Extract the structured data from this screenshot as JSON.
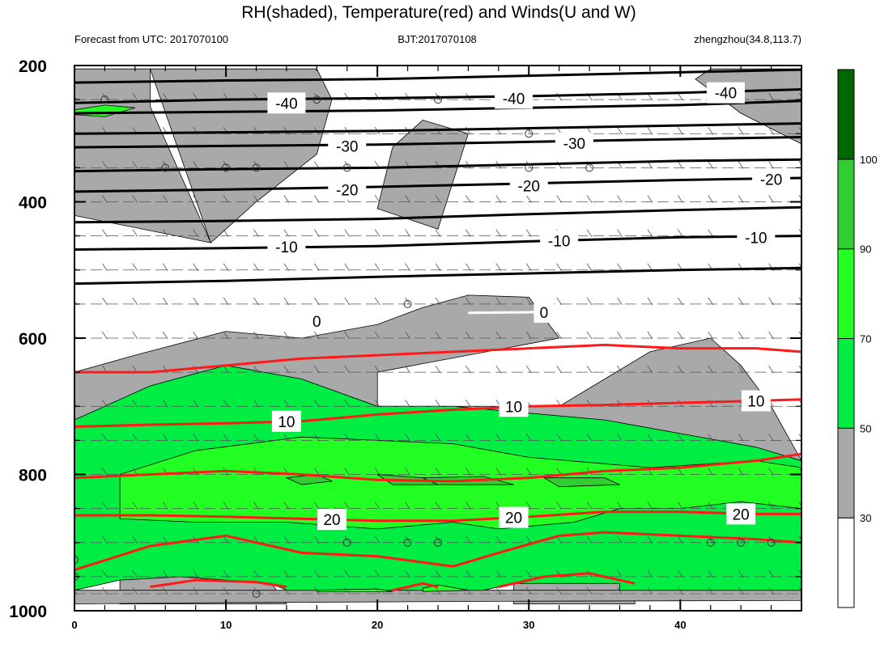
{
  "chart_data": {
    "type": "heatmap",
    "title": "RH(shaded), Temperature(red) and Winds(U and W)",
    "subtitle_left": "Forecast from UTC: 2017070100",
    "subtitle_center": "BJT:2017070108",
    "subtitle_right": "zhengzhou(34.8,113.7)",
    "x_ticks": [
      "0",
      "10",
      "20",
      "30",
      "40"
    ],
    "y_ticks": [
      "200",
      "400",
      "600",
      "800",
      "1000"
    ],
    "xlim": [
      0,
      48
    ],
    "ylim": [
      1000,
      200
    ],
    "colorbar": {
      "ticks": [
        "30",
        "50",
        "70",
        "90",
        "100"
      ],
      "levels": [
        30,
        50,
        70,
        90,
        100
      ],
      "colors": [
        "#ffffff",
        "#a9a9a9",
        "#00ee44",
        "#22ff22",
        "#33cc33",
        "#006600"
      ]
    },
    "rh_regions": [
      {
        "level": "gray",
        "points": [
          [
            0,
            205
          ],
          [
            5,
            205
          ],
          [
            5,
            260
          ],
          [
            9,
            460
          ],
          [
            0,
            420
          ]
        ]
      },
      {
        "level": "gray",
        "points": [
          [
            5,
            205
          ],
          [
            16,
            205
          ],
          [
            17,
            250
          ],
          [
            16,
            330
          ],
          [
            12,
            400
          ],
          [
            9,
            460
          ]
        ]
      },
      {
        "level": "gray",
        "points": [
          [
            21,
            320
          ],
          [
            23,
            280
          ],
          [
            26,
            300
          ],
          [
            24,
            440
          ],
          [
            20,
            410
          ]
        ]
      },
      {
        "level": "gray",
        "points": [
          [
            42,
            205
          ],
          [
            48,
            205
          ],
          [
            48,
            315
          ],
          [
            44,
            270
          ],
          [
            41,
            220
          ]
        ]
      },
      {
        "level": "gray",
        "points": [
          [
            0,
            650
          ],
          [
            4,
            625
          ],
          [
            10,
            590
          ],
          [
            15,
            600
          ],
          [
            20,
            580
          ],
          [
            23,
            555
          ],
          [
            26,
            537
          ],
          [
            30,
            540
          ],
          [
            32,
            600
          ],
          [
            20,
            650
          ],
          [
            20,
            700
          ],
          [
            32,
            700
          ],
          [
            38,
            620
          ],
          [
            42,
            600
          ],
          [
            44,
            640
          ],
          [
            46,
            700
          ],
          [
            48,
            780
          ],
          [
            42,
            760
          ],
          [
            36,
            750
          ],
          [
            25,
            740
          ],
          [
            15,
            740
          ],
          [
            10,
            730
          ],
          [
            0,
            720
          ]
        ]
      },
      {
        "level": "gray",
        "points": [
          [
            3,
            955
          ],
          [
            7,
            950
          ],
          [
            13,
            960
          ],
          [
            14,
            990
          ],
          [
            3,
            990
          ]
        ]
      },
      {
        "level": "gray",
        "points": [
          [
            29,
            955
          ],
          [
            33,
            943
          ],
          [
            37,
            960
          ],
          [
            37,
            990
          ],
          [
            29,
            990
          ]
        ]
      },
      {
        "level": "gray",
        "points": [
          [
            0,
            970
          ],
          [
            48,
            970
          ],
          [
            48,
            985
          ],
          [
            30,
            986
          ],
          [
            10,
            988
          ],
          [
            0,
            990
          ]
        ]
      },
      {
        "level": "green50",
        "points": [
          [
            0,
            720
          ],
          [
            5,
            670
          ],
          [
            10,
            640
          ],
          [
            15,
            660
          ],
          [
            20,
            700
          ],
          [
            25,
            700
          ],
          [
            35,
            720
          ],
          [
            45,
            760
          ],
          [
            48,
            780
          ],
          [
            48,
            970
          ],
          [
            36,
            970
          ],
          [
            36,
            960
          ],
          [
            29,
            960
          ],
          [
            27,
            970
          ],
          [
            14,
            970
          ],
          [
            13,
            960
          ],
          [
            7,
            950
          ],
          [
            3,
            955
          ],
          [
            0,
            970
          ]
        ]
      },
      {
        "level": "green70",
        "points": [
          [
            3,
            800
          ],
          [
            8,
            765
          ],
          [
            15,
            745
          ],
          [
            25,
            755
          ],
          [
            30,
            775
          ],
          [
            38,
            790
          ],
          [
            45,
            780
          ],
          [
            48,
            790
          ],
          [
            48,
            850
          ],
          [
            44,
            840
          ],
          [
            40,
            850
          ],
          [
            36,
            850
          ],
          [
            33,
            870
          ],
          [
            28,
            880
          ],
          [
            25,
            870
          ],
          [
            20,
            880
          ],
          [
            14,
            870
          ],
          [
            8,
            870
          ],
          [
            3,
            865
          ]
        ]
      },
      {
        "level": "green90",
        "points": [
          [
            14,
            805
          ],
          [
            16,
            800
          ],
          [
            17,
            810
          ],
          [
            15,
            815
          ]
        ]
      },
      {
        "level": "green90",
        "points": [
          [
            20,
            800
          ],
          [
            23,
            805
          ],
          [
            24,
            815
          ],
          [
            21,
            815
          ]
        ]
      },
      {
        "level": "green90",
        "points": [
          [
            23,
            805
          ],
          [
            27,
            803
          ],
          [
            29,
            815
          ],
          [
            24,
            815
          ]
        ]
      },
      {
        "level": "green90",
        "points": [
          [
            31,
            805
          ],
          [
            35,
            805
          ],
          [
            36,
            815
          ],
          [
            32,
            818
          ]
        ]
      },
      {
        "level": "green70",
        "points": [
          [
            16,
            970
          ],
          [
            20,
            968
          ],
          [
            21,
            972
          ],
          [
            16,
            972
          ]
        ]
      },
      {
        "level": "green70",
        "points": [
          [
            23,
            967
          ],
          [
            24,
            962
          ],
          [
            26,
            970
          ],
          [
            23,
            972
          ]
        ]
      },
      {
        "level": "green70",
        "points": [
          [
            0,
            265
          ],
          [
            2,
            258
          ],
          [
            4,
            262
          ],
          [
            2,
            275
          ],
          [
            0,
            272
          ]
        ]
      }
    ],
    "temperature_isotherms_black": [
      {
        "label": "-40",
        "points": [
          [
            0,
            225
          ],
          [
            10,
            222
          ],
          [
            20,
            220
          ],
          [
            30,
            215
          ],
          [
            40,
            210
          ],
          [
            48,
            206
          ]
        ]
      },
      {
        "label": "-40",
        "points": [
          [
            0,
            255
          ],
          [
            10,
            250
          ],
          [
            20,
            248
          ],
          [
            30,
            245
          ],
          [
            40,
            240
          ],
          [
            48,
            235
          ]
        ]
      },
      {
        "label": "",
        "points": [
          [
            0,
            270
          ],
          [
            10,
            268
          ],
          [
            20,
            266
          ],
          [
            30,
            262
          ],
          [
            40,
            258
          ],
          [
            48,
            252
          ]
        ]
      },
      {
        "label": "-30",
        "points": [
          [
            0,
            300
          ],
          [
            10,
            298
          ],
          [
            20,
            296
          ],
          [
            30,
            292
          ],
          [
            40,
            288
          ],
          [
            48,
            285
          ]
        ]
      },
      {
        "label": "-30",
        "points": [
          [
            0,
            320
          ],
          [
            10,
            318
          ],
          [
            20,
            316
          ],
          [
            30,
            312
          ],
          [
            40,
            308
          ],
          [
            48,
            305
          ]
        ]
      },
      {
        "label": "-20",
        "points": [
          [
            0,
            355
          ],
          [
            10,
            352
          ],
          [
            20,
            350
          ],
          [
            30,
            345
          ],
          [
            40,
            340
          ],
          [
            48,
            338
          ]
        ]
      },
      {
        "label": "-20",
        "points": [
          [
            0,
            385
          ],
          [
            10,
            382
          ],
          [
            20,
            378
          ],
          [
            30,
            373
          ],
          [
            40,
            368
          ],
          [
            48,
            365
          ]
        ]
      },
      {
        "label": "-10",
        "points": [
          [
            0,
            430
          ],
          [
            10,
            428
          ],
          [
            20,
            425
          ],
          [
            30,
            418
          ],
          [
            40,
            412
          ],
          [
            48,
            408
          ]
        ]
      },
      {
        "label": "-10",
        "points": [
          [
            0,
            470
          ],
          [
            10,
            468
          ],
          [
            20,
            465
          ],
          [
            30,
            458
          ],
          [
            40,
            452
          ],
          [
            48,
            450
          ]
        ]
      },
      {
        "label": "",
        "points": [
          [
            0,
            520
          ],
          [
            10,
            516
          ],
          [
            20,
            510
          ],
          [
            30,
            505
          ],
          [
            40,
            500
          ],
          [
            48,
            497
          ]
        ]
      }
    ],
    "zero_isotherm_white": {
      "label": "0",
      "points": [
        [
          26,
          563
        ],
        [
          30,
          562
        ],
        [
          34,
          560
        ]
      ]
    },
    "temperature_isotherms_red": [
      {
        "label": "",
        "points": [
          [
            0,
            650
          ],
          [
            5,
            650
          ],
          [
            10,
            640
          ],
          [
            15,
            630
          ],
          [
            20,
            625
          ],
          [
            25,
            620
          ],
          [
            30,
            615
          ],
          [
            35,
            610
          ],
          [
            40,
            615
          ],
          [
            45,
            615
          ],
          [
            48,
            620
          ]
        ]
      },
      {
        "label": "10",
        "points": [
          [
            0,
            730
          ],
          [
            5,
            727
          ],
          [
            10,
            725
          ],
          [
            15,
            722
          ],
          [
            20,
            712
          ],
          [
            25,
            705
          ],
          [
            30,
            700
          ],
          [
            35,
            698
          ],
          [
            40,
            695
          ],
          [
            45,
            692
          ],
          [
            48,
            690
          ]
        ]
      },
      {
        "label": "",
        "points": [
          [
            0,
            805
          ],
          [
            5,
            800
          ],
          [
            10,
            795
          ],
          [
            15,
            800
          ],
          [
            20,
            808
          ],
          [
            25,
            810
          ],
          [
            30,
            805
          ],
          [
            35,
            795
          ],
          [
            40,
            790
          ],
          [
            45,
            780
          ],
          [
            48,
            770
          ]
        ]
      },
      {
        "label": "20",
        "points": [
          [
            0,
            860
          ],
          [
            5,
            860
          ],
          [
            10,
            862
          ],
          [
            15,
            865
          ],
          [
            20,
            868
          ],
          [
            25,
            868
          ],
          [
            30,
            862
          ],
          [
            35,
            855
          ],
          [
            40,
            855
          ],
          [
            45,
            858
          ],
          [
            48,
            858
          ]
        ]
      },
      {
        "label": "",
        "points": [
          [
            0,
            940
          ],
          [
            5,
            905
          ],
          [
            10,
            890
          ],
          [
            15,
            915
          ],
          [
            20,
            920
          ],
          [
            25,
            935
          ],
          [
            28,
            915
          ],
          [
            32,
            890
          ],
          [
            35,
            885
          ],
          [
            40,
            890
          ],
          [
            45,
            895
          ],
          [
            48,
            900
          ]
        ]
      },
      {
        "label": "",
        "points": [
          [
            5,
            965
          ],
          [
            8,
            955
          ],
          [
            12,
            958
          ],
          [
            14,
            965
          ]
        ]
      },
      {
        "label": "",
        "points": [
          [
            21,
            970
          ],
          [
            23,
            960
          ],
          [
            24,
            965
          ]
        ]
      },
      {
        "label": "",
        "points": [
          [
            28,
            965
          ],
          [
            31,
            950
          ],
          [
            34,
            945
          ],
          [
            37,
            960
          ]
        ]
      }
    ],
    "calm_markers": [
      [
        2,
        250
      ],
      [
        6,
        350
      ],
      [
        10,
        350
      ],
      [
        12,
        350
      ],
      [
        18,
        350
      ],
      [
        16,
        250
      ],
      [
        24,
        250
      ],
      [
        30,
        300
      ],
      [
        30,
        350
      ],
      [
        34,
        350
      ],
      [
        22,
        550
      ],
      [
        18,
        900
      ],
      [
        22,
        900
      ],
      [
        24,
        900
      ],
      [
        42,
        900
      ],
      [
        44,
        900
      ],
      [
        46,
        900
      ],
      [
        0,
        925
      ],
      [
        0,
        950
      ],
      [
        12,
        975
      ]
    ],
    "barb_levels": [
      200,
      250,
      300,
      350,
      400,
      450,
      500,
      550,
      600,
      650,
      700,
      750,
      800,
      850,
      900,
      950,
      975
    ]
  }
}
